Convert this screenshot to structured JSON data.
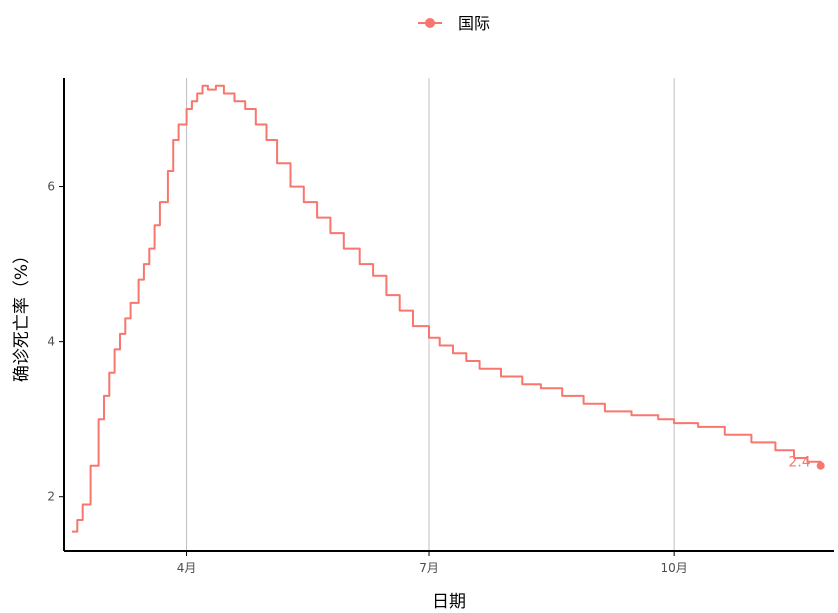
{
  "chart_data": {
    "type": "line",
    "title": "",
    "xlabel": "日期",
    "ylabel": "确诊死亡率（%）",
    "x_tick_labels": [
      "4月",
      "7月",
      "10月"
    ],
    "x_tick_values": [
      "2020-04-01",
      "2020-07-01",
      "2020-10-01"
    ],
    "y_ticks": [
      2,
      4,
      6
    ],
    "xlim": [
      "2020-02-15",
      "2020-11-30"
    ],
    "ylim": [
      1.3,
      7.4
    ],
    "grid": "vertical major gridlines only",
    "legend": "top",
    "colors": {
      "series": "#f8766d",
      "grid": "#bebebe",
      "axis": "#000000"
    },
    "series": [
      {
        "name": "国际",
        "x": [
          "2020-02-18",
          "2020-02-20",
          "2020-02-22",
          "2020-02-25",
          "2020-02-28",
          "2020-03-01",
          "2020-03-03",
          "2020-03-05",
          "2020-03-07",
          "2020-03-09",
          "2020-03-11",
          "2020-03-14",
          "2020-03-16",
          "2020-03-18",
          "2020-03-20",
          "2020-03-22",
          "2020-03-25",
          "2020-03-27",
          "2020-03-29",
          "2020-04-01",
          "2020-04-03",
          "2020-04-05",
          "2020-04-07",
          "2020-04-09",
          "2020-04-12",
          "2020-04-15",
          "2020-04-19",
          "2020-04-23",
          "2020-04-27",
          "2020-05-01",
          "2020-05-05",
          "2020-05-10",
          "2020-05-15",
          "2020-05-20",
          "2020-05-25",
          "2020-05-30",
          "2020-06-05",
          "2020-06-10",
          "2020-06-15",
          "2020-06-20",
          "2020-06-25",
          "2020-07-01",
          "2020-07-05",
          "2020-07-10",
          "2020-07-15",
          "2020-07-20",
          "2020-07-28",
          "2020-08-05",
          "2020-08-12",
          "2020-08-20",
          "2020-08-28",
          "2020-09-05",
          "2020-09-15",
          "2020-09-25",
          "2020-10-01",
          "2020-10-10",
          "2020-10-20",
          "2020-10-30",
          "2020-11-08",
          "2020-11-15",
          "2020-11-20",
          "2020-11-25"
        ],
        "y": [
          1.55,
          1.7,
          1.9,
          2.4,
          3.0,
          3.3,
          3.6,
          3.9,
          4.1,
          4.3,
          4.5,
          4.8,
          5.0,
          5.2,
          5.5,
          5.8,
          6.2,
          6.6,
          6.8,
          7.0,
          7.1,
          7.2,
          7.3,
          7.25,
          7.3,
          7.2,
          7.1,
          7.0,
          6.8,
          6.6,
          6.3,
          6.0,
          5.8,
          5.6,
          5.4,
          5.2,
          5.0,
          4.85,
          4.6,
          4.4,
          4.2,
          4.05,
          3.95,
          3.85,
          3.75,
          3.65,
          3.55,
          3.45,
          3.4,
          3.3,
          3.2,
          3.1,
          3.05,
          3.0,
          2.95,
          2.9,
          2.8,
          2.7,
          2.6,
          2.5,
          2.45,
          2.4
        ]
      }
    ],
    "annotations": [
      {
        "x": "2020-11-25",
        "y": 2.4,
        "text": "2.4"
      }
    ]
  }
}
